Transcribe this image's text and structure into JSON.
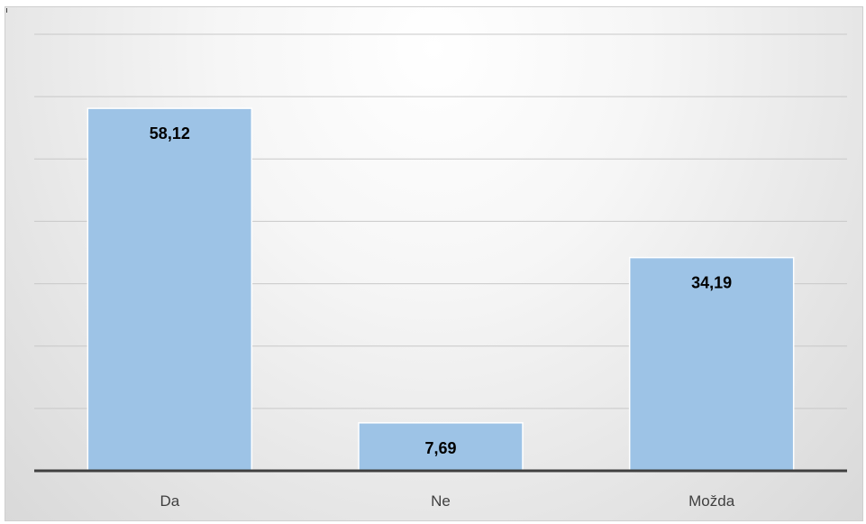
{
  "chart_data": {
    "type": "bar",
    "categories": [
      "Da",
      "Ne",
      "Možda"
    ],
    "values": [
      58.12,
      7.69,
      34.19
    ],
    "data_labels": [
      "58,12",
      "7,69",
      "34,19"
    ],
    "ylim": [
      0,
      70
    ],
    "grid": true,
    "legend": "none",
    "colors": {
      "bar": "#9dc3e6",
      "grid": "#c8c8c8",
      "axis": "#404040"
    }
  }
}
